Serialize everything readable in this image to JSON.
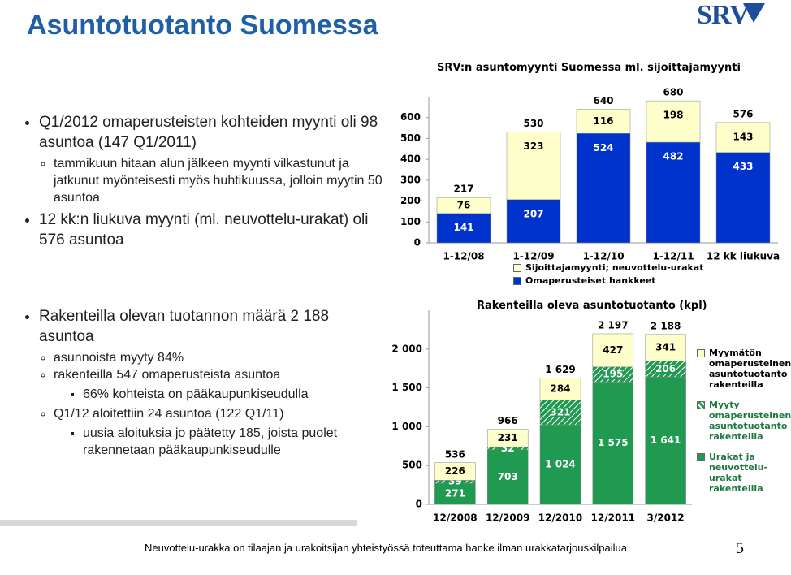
{
  "title": "Asuntotuotanto Suomessa",
  "logo": "SRV",
  "bullets_top": [
    {
      "text": "Q1/2012 omaperusteisten kohteiden myynti oli 98 asuntoa (147 Q1/2011)",
      "sub": [
        {
          "text": "tammikuun hitaan alun jälkeen myynti vilkastunut ja jatkunut myönteisesti myös huhtikuussa, jolloin myytin 50 asuntoa"
        }
      ]
    },
    {
      "text": "12 kk:n liukuva myynti (ml. neuvottelu-urakat) oli 576 asuntoa"
    }
  ],
  "bullets_bottom": [
    {
      "text": "Rakenteilla olevan tuotannon määrä 2 188 asuntoa",
      "sub": [
        {
          "text": "asunnoista myyty 84%"
        },
        {
          "text": "rakenteilla 547 omaperusteista asuntoa",
          "sub": [
            {
              "text": "66% kohteista on pääkaupunkiseudulla"
            }
          ]
        },
        {
          "text": "Q1/12 aloitettiin 24 asuntoa (122 Q1/11)",
          "sub": [
            {
              "text": "uusia aloituksia jo päätetty 185, joista puolet rakennetaan pääkaupunkiseudulle"
            }
          ]
        }
      ]
    }
  ],
  "footer": "Neuvottelu-urakka on tilaajan ja urakoitsijan yhteistyössä toteuttama hanke ilman urakkatarjouskilpailua",
  "page_number": "5",
  "chart_data": [
    {
      "type": "stacked_bar",
      "title": "SRV:n asuntomyynti Suomessa ml. sijoittajamyynti",
      "categories": [
        "1-12/08",
        "1-12/09",
        "1-12/10",
        "1-12/11",
        "12 kk liukuva"
      ],
      "series": [
        {
          "name": "Omaperusteiset hankkeet",
          "color": "#0033cc",
          "label_color": "#ffffff",
          "values": [
            141,
            207,
            524,
            482,
            433
          ]
        },
        {
          "name": "Sijoittajamyynti; neuvottelu-urakat",
          "color": "#ffffcc",
          "label_color": "#000000",
          "values": [
            76,
            323,
            116,
            198,
            143
          ]
        }
      ],
      "totals": [
        217,
        530,
        640,
        680,
        576
      ],
      "ylim": [
        0,
        700
      ],
      "yticks": [
        0,
        100,
        200,
        300,
        400,
        500,
        600
      ],
      "legend": "bottom"
    },
    {
      "type": "stacked_bar",
      "title": "Rakenteilla oleva asuntotuotanto (kpl)",
      "categories": [
        "12/2008",
        "12/2009",
        "12/2010",
        "12/2011",
        "3/2012"
      ],
      "series": [
        {
          "name": "Urakat ja neuvottelu-urakat rakenteilla",
          "color": "#1f9a50",
          "label_color": "#ffffff",
          "values": [
            271,
            703,
            1024,
            1575,
            1641
          ],
          "value_labels": [
            "271",
            "703",
            "1 024",
            "1 575",
            "1 641"
          ]
        },
        {
          "name": "Myyty omaperusteinen asuntotuotanto rakenteilla",
          "color": "#1f9a50",
          "hatch": true,
          "label_color": "#ffffff",
          "values": [
            39,
            32,
            321,
            195,
            206
          ]
        },
        {
          "name": "Myymätön omaperusteinen asuntotuotanto rakenteilla",
          "color": "#ffffcc",
          "label_color": "#000000",
          "values": [
            226,
            231,
            284,
            427,
            341
          ]
        }
      ],
      "totals": [
        536,
        966,
        1629,
        2197,
        2188
      ],
      "total_labels": [
        "536",
        "966",
        "1 629",
        "2 197",
        "2 188"
      ],
      "ylim": [
        0,
        2500
      ],
      "yticks": [
        0,
        {
          "value": 500,
          "label": "500"
        },
        {
          "value": 1000,
          "label": "1 000"
        },
        {
          "value": 1500,
          "label": "1 500"
        },
        {
          "value": 2000,
          "label": "2 000"
        }
      ],
      "legend": "right"
    }
  ]
}
